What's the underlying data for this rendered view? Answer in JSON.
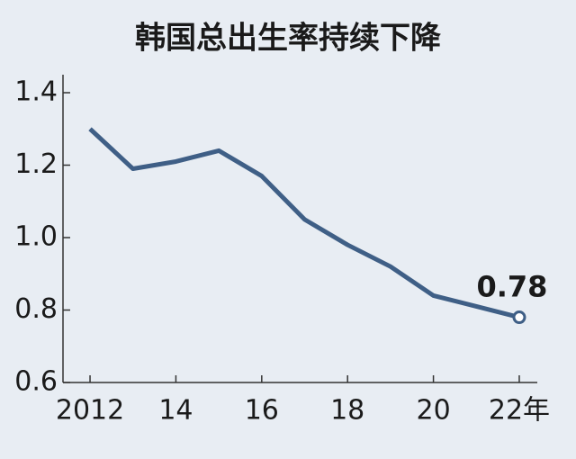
{
  "chart_data": {
    "type": "line",
    "title": "韩国总出生率持续下降",
    "x": [
      2012,
      2013,
      2014,
      2015,
      2016,
      2017,
      2018,
      2019,
      2020,
      2021,
      2022
    ],
    "series": [
      {
        "name": "总出生率",
        "color": "#3f5f86",
        "values": [
          1.3,
          1.19,
          1.21,
          1.24,
          1.17,
          1.05,
          0.98,
          0.92,
          0.84,
          0.81,
          0.78
        ],
        "value_labels": [
          null,
          null,
          null,
          null,
          null,
          null,
          null,
          null,
          null,
          null,
          "0.78"
        ]
      }
    ],
    "xlim": [
      2011.37,
      2022.42
    ],
    "xticks": [
      2012,
      {
        "value": 2014,
        "label": "14"
      },
      {
        "value": 2016,
        "label": "16"
      },
      {
        "value": 2018,
        "label": "18"
      },
      {
        "value": 2020,
        "label": "20"
      },
      {
        "value": 2022,
        "label": "22年"
      }
    ],
    "ylim": [
      0.6,
      1.4
    ],
    "yticks": [
      0.6,
      0.8,
      {
        "value": 1,
        "label": "1.0"
      },
      1.2,
      1.4
    ],
    "grid": false
  }
}
